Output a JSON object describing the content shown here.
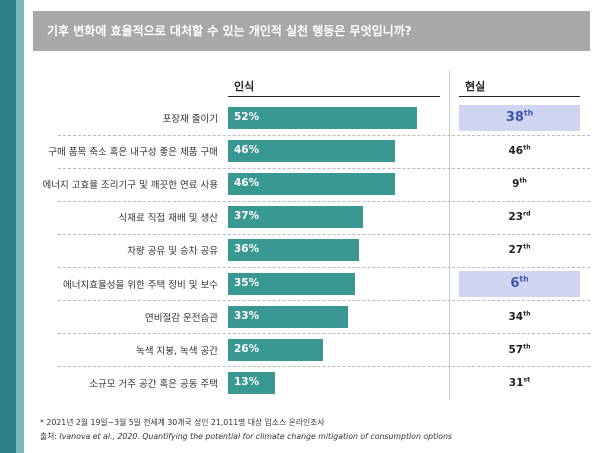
{
  "title": "기후 변화에 효율적으로 대처할 수 있는 개인적 실천 행동은 무엇입니까?",
  "headers": {
    "perception": "인식",
    "reality": "현실"
  },
  "chart_data": {
    "type": "bar",
    "orientation": "horizontal",
    "categories": [
      "포장재 줄이기",
      "구매 품목 축소 혹은 내구성 좋은 제품 구매",
      "에너지 고효율 조리기구 및 깨끗한 연료 사용",
      "식재료 직접 재배 및 생산",
      "차량 공유 및 승차 공유",
      "에너지효율성을 위한 주택 정비 및 보수",
      "연비절감 운전습관",
      "녹색 지붕, 녹색 공간",
      "소규모 거주 공간 혹은 공동 주택"
    ],
    "series": [
      {
        "name": "인식",
        "values": [
          52,
          46,
          46,
          37,
          36,
          35,
          33,
          26,
          13
        ]
      }
    ],
    "value_labels": [
      "52%",
      "46%",
      "46%",
      "37%",
      "36%",
      "35%",
      "33%",
      "26%",
      "13%"
    ],
    "reality_ranks": [
      {
        "num": "38",
        "suffix": "th",
        "highlight": true
      },
      {
        "num": "46",
        "suffix": "th",
        "highlight": false
      },
      {
        "num": "9",
        "suffix": "th",
        "highlight": false
      },
      {
        "num": "23",
        "suffix": "rd",
        "highlight": false
      },
      {
        "num": "27",
        "suffix": "th",
        "highlight": false
      },
      {
        "num": "6",
        "suffix": "th",
        "highlight": true
      },
      {
        "num": "34",
        "suffix": "th",
        "highlight": false
      },
      {
        "num": "57",
        "suffix": "th",
        "highlight": false
      },
      {
        "num": "31",
        "suffix": "st",
        "highlight": false
      }
    ],
    "xlim": [
      0,
      100
    ],
    "grid": false,
    "legend": "none"
  },
  "colors": {
    "bar": "#3a9892",
    "highlight_bg": "#cfd5f1",
    "highlight_text": "#3d55a6",
    "title_bg": "#a8a8a8",
    "stripe": "#2f7f87"
  },
  "footnotes": {
    "survey": "* 2021년 2월 19일~3월 5일 전세계 30개국 성인 21,011명 대상 입소스 온라인조사",
    "source_prefix": "출처: ",
    "source_text": "Ivanova et al., 2020. Quantifying the potential for climate change mitigation of consumption options"
  }
}
